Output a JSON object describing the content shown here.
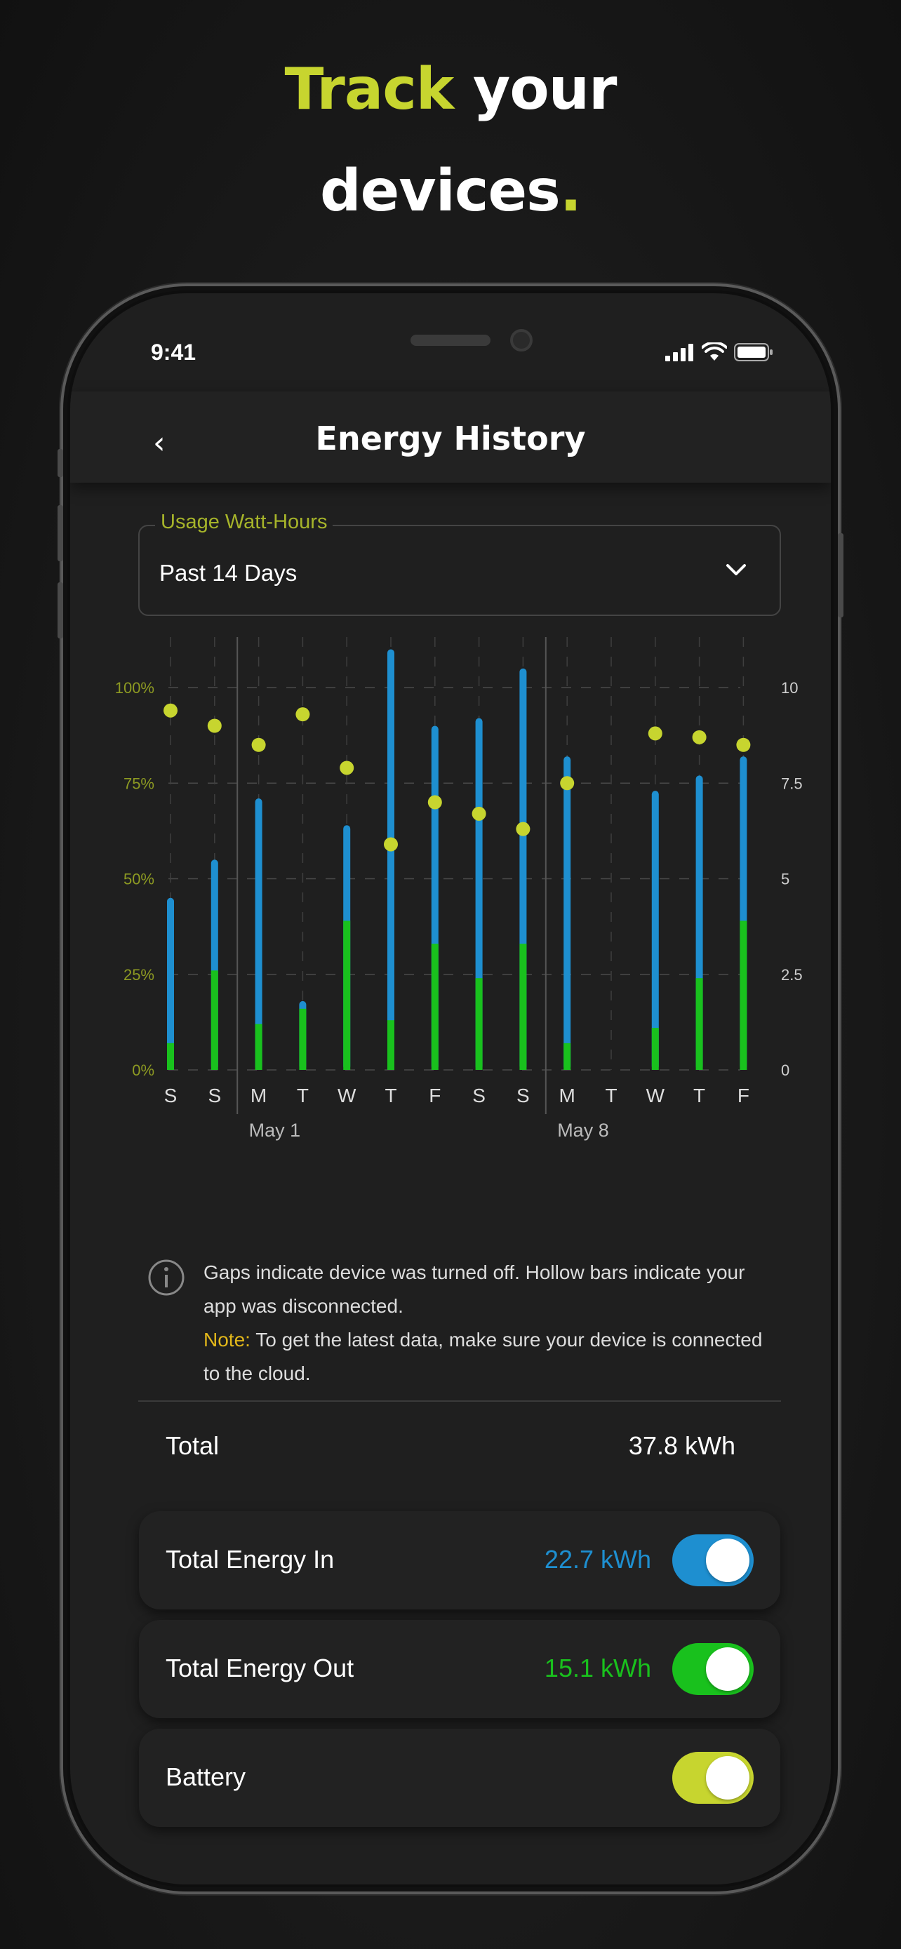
{
  "headline": {
    "line1_accent": "Track",
    "line1_rest": " your",
    "line2": "devices",
    "line2_dot": "."
  },
  "status_bar": {
    "time": "9:41"
  },
  "nav": {
    "back": "‹",
    "title": "Energy History"
  },
  "usage_select": {
    "label": "Usage Watt-Hours",
    "value": "Past 14 Days"
  },
  "chart_data": {
    "type": "bar",
    "categories": [
      "S",
      "S",
      "M",
      "T",
      "W",
      "T",
      "F",
      "S",
      "S",
      "M",
      "T",
      "W",
      "T",
      "F"
    ],
    "week_labels": [
      "May 1",
      "May 8"
    ],
    "left_axis": {
      "ticks": [
        "0%",
        "25%",
        "50%",
        "75%",
        "100%"
      ],
      "range": [
        0,
        100
      ]
    },
    "right_axis": {
      "ticks": [
        "0",
        "2.5",
        "5",
        "7.5",
        "10"
      ],
      "range": [
        0,
        10
      ]
    },
    "series": [
      {
        "name": "Total Energy In",
        "color": "#1e8fd0",
        "values": [
          4.5,
          5.5,
          7.1,
          1.8,
          6.4,
          11.0,
          9.0,
          9.2,
          10.5,
          8.2,
          0,
          7.3,
          7.7,
          8.2
        ]
      },
      {
        "name": "Total Energy Out",
        "color": "#19c11d",
        "values": [
          0.7,
          2.6,
          1.2,
          1.6,
          3.9,
          1.3,
          3.3,
          2.4,
          3.3,
          0.7,
          0,
          1.1,
          2.4,
          3.9
        ]
      },
      {
        "name": "Battery",
        "color": "#c7d52f",
        "values_percent": [
          94,
          90,
          85,
          93,
          79,
          59,
          70,
          67,
          63,
          75,
          null,
          88,
          87,
          85
        ]
      }
    ],
    "grid": true
  },
  "info": {
    "text": "Gaps indicate device was turned off.  Hollow bars indicate your app was disconnected.",
    "note_label": "Note:",
    "note_text": " To get the latest data, make sure your device is connected to the cloud."
  },
  "total": {
    "label": "Total",
    "value": "37.8 kWh"
  },
  "rows": [
    {
      "label": "Total Energy In",
      "value": "22.7 kWh",
      "color": "#1e8fd0",
      "on": true
    },
    {
      "label": "Total Energy Out",
      "value": "15.1 kWh",
      "color": "#19c11d",
      "on": true
    },
    {
      "label": "Battery",
      "value": "",
      "color": "#c7d52f",
      "on": true
    }
  ]
}
